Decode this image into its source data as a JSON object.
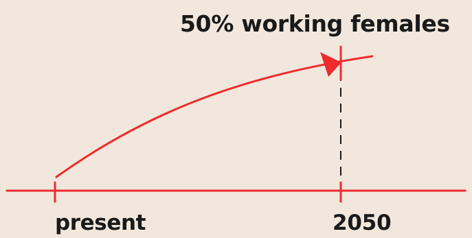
{
  "diagram": {
    "target_label": "50% working females",
    "timeline_start_label": "present",
    "timeline_end_label": "2050",
    "colors": {
      "background": "#f1e7dc",
      "line": "#ef2b2d",
      "text": "#1a1a1a",
      "dashed_marker": "#1a1a1a"
    }
  }
}
